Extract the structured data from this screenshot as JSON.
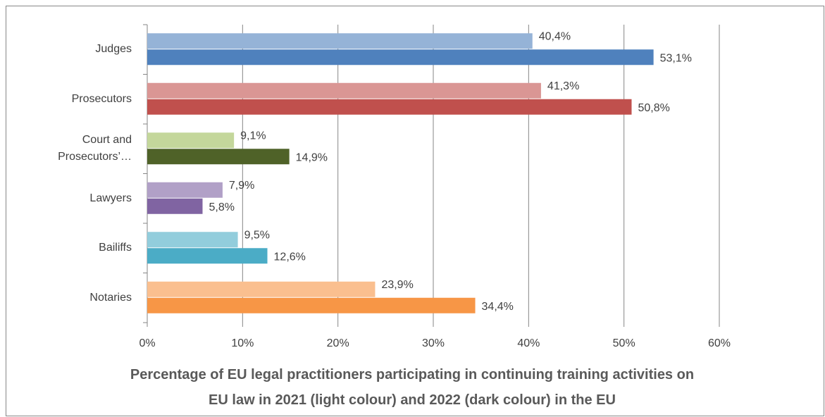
{
  "chart_data": {
    "type": "hbar",
    "title": "Percentage of EU legal practitioners participating in continuing training activities on\nEU law in 2021 (light colour) and 2022 (dark colour) in the EU",
    "categories": [
      "Judges",
      "Prosecutors",
      "Court and\nProsecutors’…",
      "Lawyers",
      "Bailiffs",
      "Notaries"
    ],
    "series": [
      {
        "values": [
          40.4,
          41.3,
          9.1,
          7.9,
          9.5,
          23.9
        ],
        "value_labels": [
          "40,4%",
          "41,3%",
          "9,1%",
          "7,9%",
          "9,5%",
          "23,9%"
        ],
        "colors": [
          "#95b3d7",
          "#da9694",
          "#c4d79b",
          "#b1a0c7",
          "#92cddc",
          "#fabf8f"
        ]
      },
      {
        "values": [
          53.1,
          50.8,
          14.9,
          5.8,
          12.6,
          34.4
        ],
        "value_labels": [
          "53,1%",
          "50,8%",
          "14,9%",
          "5,8%",
          "12,6%",
          "34,4%"
        ],
        "colors": [
          "#4f81bd",
          "#c0504d",
          "#4f6228",
          "#8064a2",
          "#4bacc6",
          "#f79646"
        ]
      }
    ],
    "xlim": [
      0,
      60
    ],
    "xticks": [
      {
        "value": 0,
        "label": "0%"
      },
      {
        "value": 10,
        "label": "10%"
      },
      {
        "value": 20,
        "label": "20%"
      },
      {
        "value": 30,
        "label": "30%"
      },
      {
        "value": 40,
        "label": "40%"
      },
      {
        "value": 50,
        "label": "50%"
      },
      {
        "value": 60,
        "label": "60%"
      }
    ],
    "grid": true
  }
}
